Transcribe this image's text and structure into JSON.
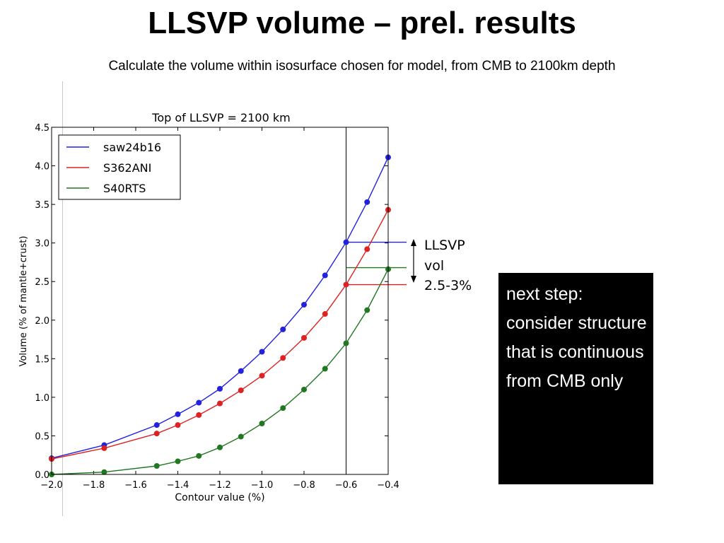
{
  "slide": {
    "title": "LLSVP volume – prel. results",
    "subtitle": "Calculate the volume within isosurface chosen for model, from CMB to 2100km depth",
    "note": "next step: consider structure that is continuous from CMB only"
  },
  "chart_data": {
    "type": "line",
    "title": "Top of LLSVP = 2100 km",
    "xlabel": "Contour value (%)",
    "ylabel": "Volume (% of mantle+crust)",
    "xlim": [
      -2.0,
      -0.4
    ],
    "ylim": [
      0.0,
      4.5
    ],
    "xticks": [
      -2.0,
      -1.8,
      -1.6,
      -1.4,
      -1.2,
      -1.0,
      -0.8,
      -0.6,
      -0.4
    ],
    "xtick_labels": [
      "−2.0",
      "−1.8",
      "−1.6",
      "−1.4",
      "−1.2",
      "−1.0",
      "−0.8",
      "−0.6",
      "−0.4"
    ],
    "yticks": [
      0.0,
      0.5,
      1.0,
      1.5,
      2.0,
      2.5,
      3.0,
      3.5,
      4.0,
      4.5
    ],
    "ytick_labels": [
      "0.0",
      "0.5",
      "1.0",
      "1.5",
      "2.0",
      "2.5",
      "3.0",
      "3.5",
      "4.0",
      "4.5"
    ],
    "grid": false,
    "legend_position": "top-left",
    "vertical_line_x": -0.6,
    "series": [
      {
        "name": "saw24b16",
        "color": "#2222dd",
        "x": [
          -2.0,
          -1.75,
          -1.5,
          -1.4,
          -1.3,
          -1.2,
          -1.1,
          -1.0,
          -0.9,
          -0.8,
          -0.7,
          -0.6,
          -0.5,
          -0.4
        ],
        "y": [
          0.21,
          0.38,
          0.64,
          0.78,
          0.93,
          1.11,
          1.34,
          1.59,
          1.88,
          2.2,
          2.58,
          3.01,
          3.53,
          4.11
        ]
      },
      {
        "name": "S362ANI",
        "color": "#dd2222",
        "x": [
          -2.0,
          -1.75,
          -1.5,
          -1.4,
          -1.3,
          -1.2,
          -1.1,
          -1.0,
          -0.9,
          -0.8,
          -0.7,
          -0.6,
          -0.5,
          -0.4
        ],
        "y": [
          0.2,
          0.34,
          0.53,
          0.64,
          0.77,
          0.92,
          1.09,
          1.28,
          1.51,
          1.77,
          2.08,
          2.46,
          2.92,
          3.43
        ]
      },
      {
        "name": "S40RTS",
        "color": "#227722",
        "x": [
          -2.0,
          -1.75,
          -1.5,
          -1.4,
          -1.3,
          -1.2,
          -1.1,
          -1.0,
          -0.9,
          -0.8,
          -0.7,
          -0.6,
          -0.5,
          -0.4
        ],
        "y": [
          0.0,
          0.03,
          0.11,
          0.17,
          0.24,
          0.35,
          0.49,
          0.66,
          0.86,
          1.1,
          1.37,
          1.7,
          2.13,
          2.66
        ]
      }
    ],
    "reference_lines": [
      {
        "y": 3.01,
        "color": "#2222dd"
      },
      {
        "y": 2.68,
        "color": "#227722"
      },
      {
        "y": 2.46,
        "color": "#dd2222"
      }
    ],
    "annotation": {
      "lines": [
        "LLSVP",
        "vol",
        "2.5-3%"
      ]
    }
  }
}
